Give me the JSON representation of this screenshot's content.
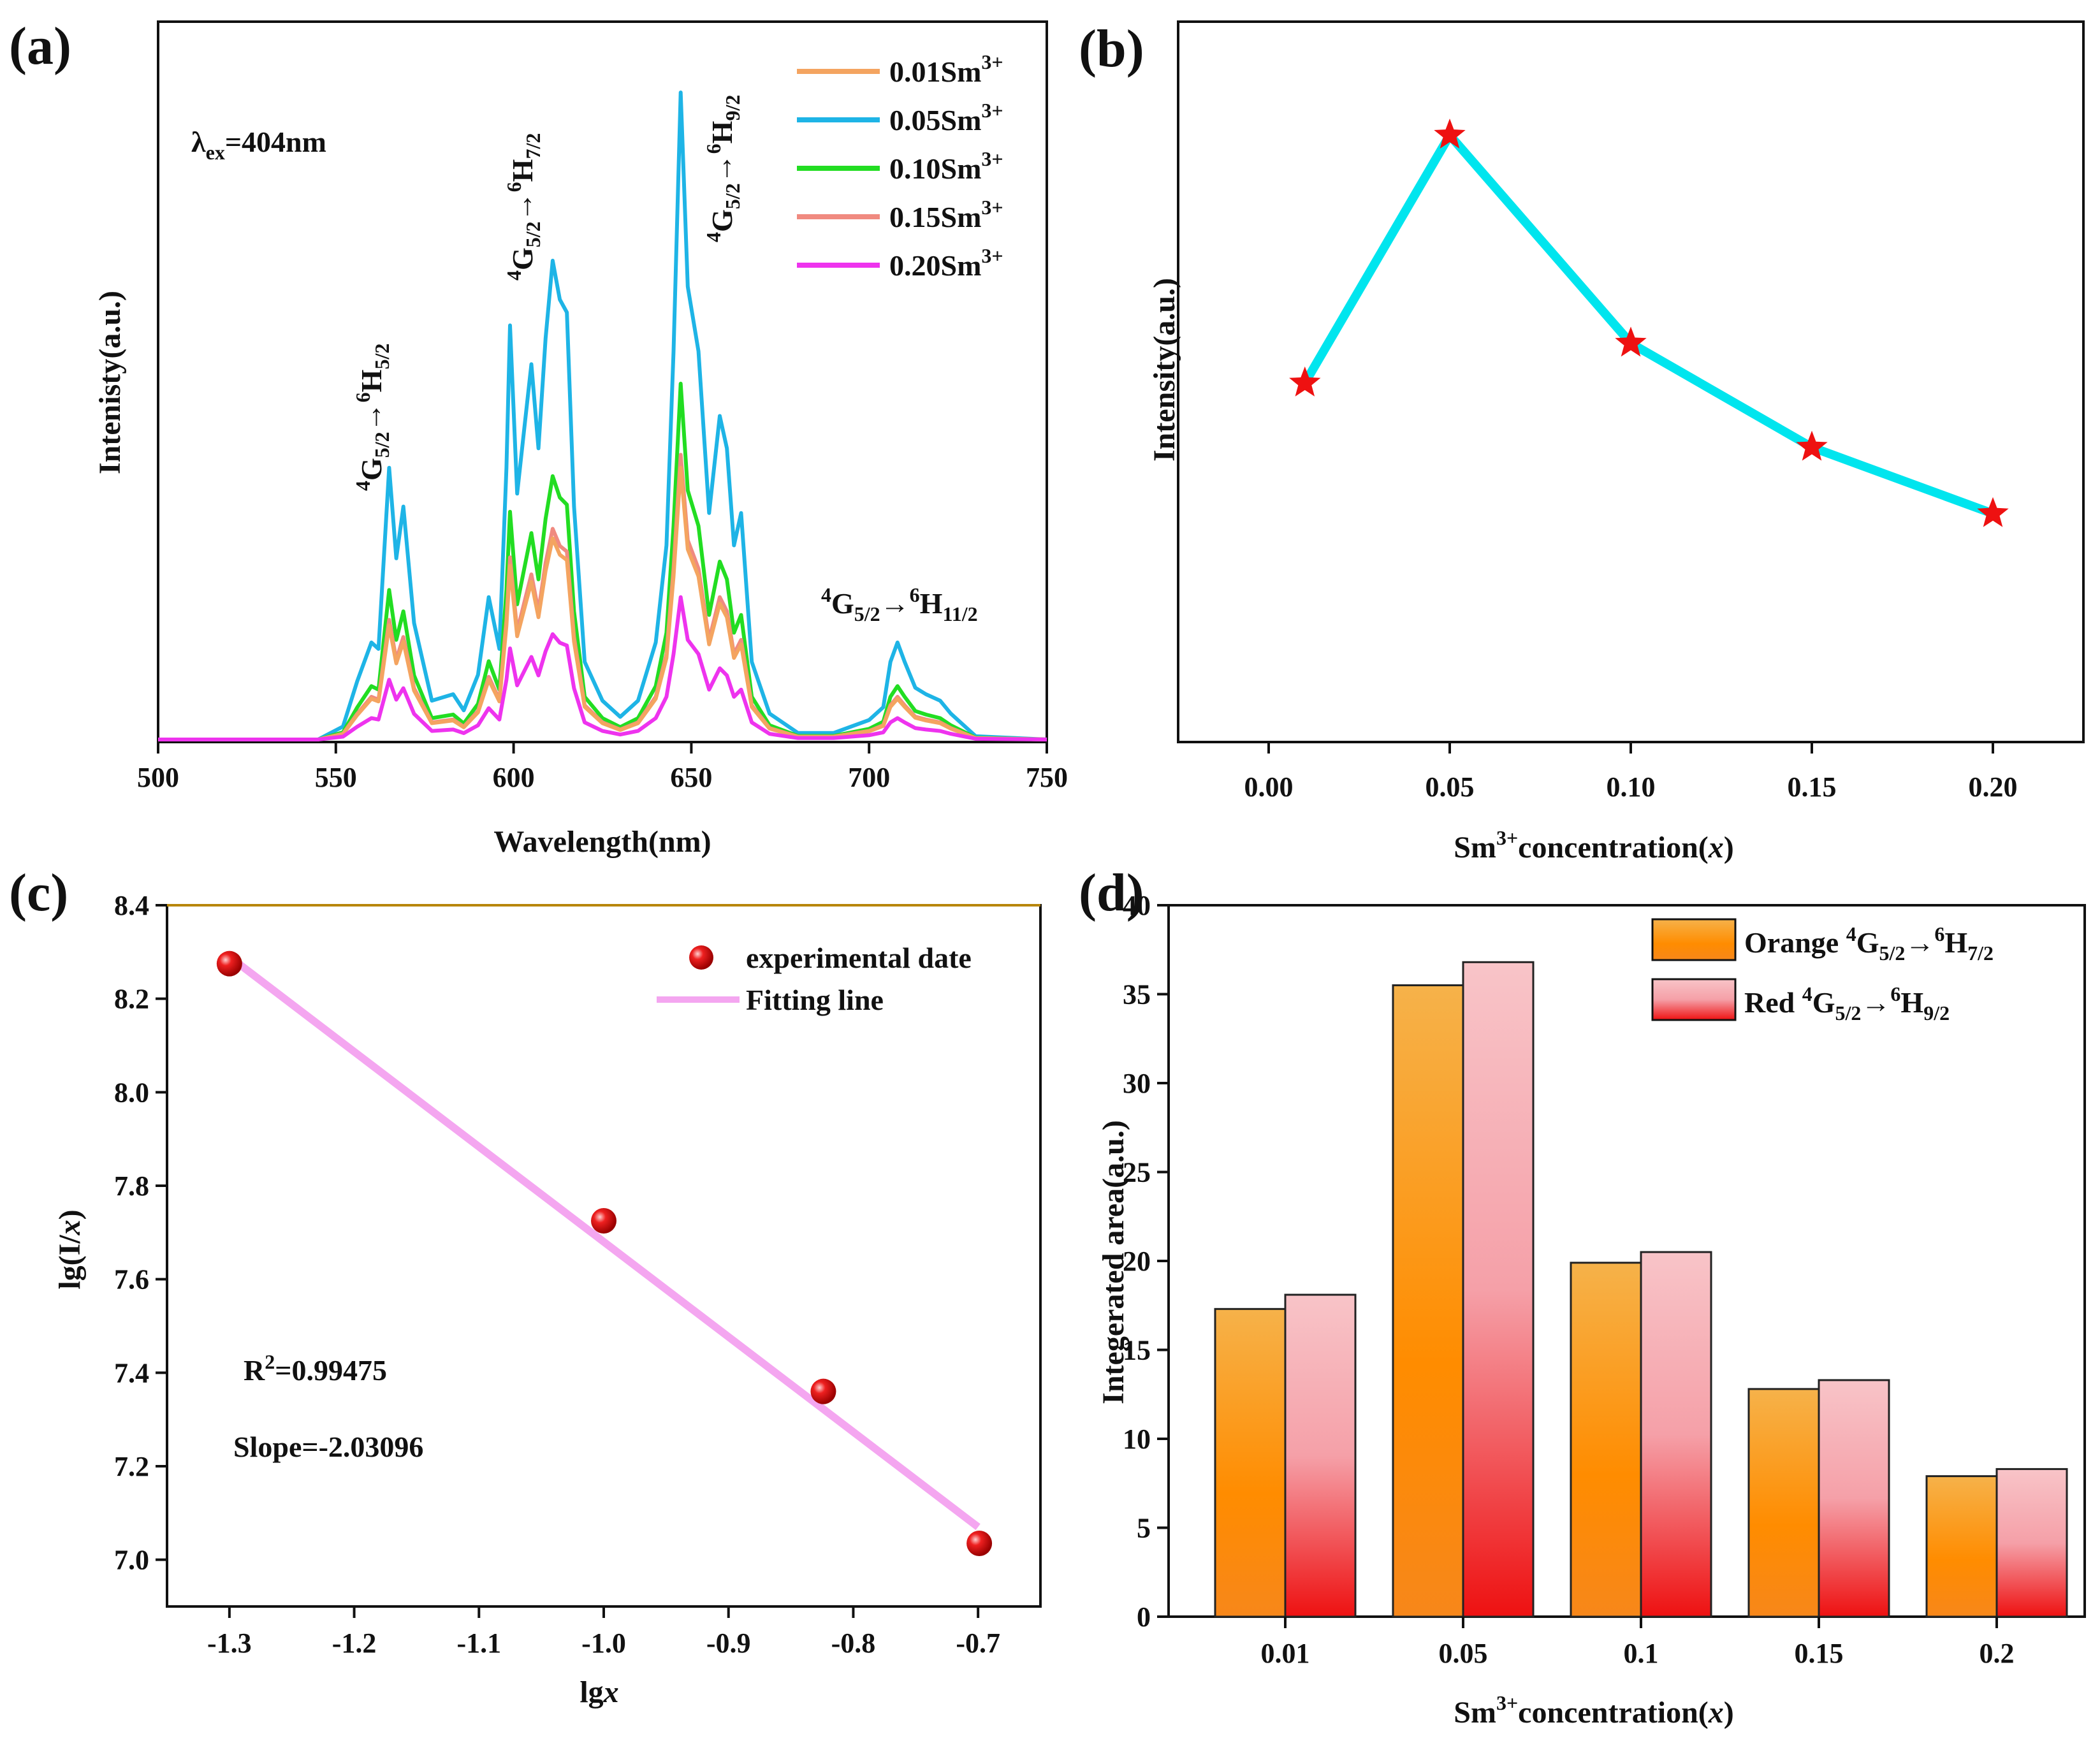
{
  "chart_data": [
    {
      "panel": "(a)",
      "type": "line",
      "xlabel": "Wavelength(nm)",
      "ylabel": "Intenisty(a.u.)",
      "xlim": [
        500,
        750
      ],
      "xticks": [
        500,
        550,
        600,
        650,
        700,
        750
      ],
      "excitation": {
        "symbol": "λ",
        "sub": "ex",
        "value": "=404nm"
      },
      "peak_labels": [
        {
          "text": "4G5/2→6H5/2",
          "wavelength": 565
        },
        {
          "text": "4G5/2→6H7/2",
          "wavelength": 611
        },
        {
          "text": "4G5/2→6H9/2",
          "wavelength": 647
        },
        {
          "text": "4G5/2→6H11/2",
          "wavelength": 708
        }
      ],
      "profile": [
        [
          500,
          0
        ],
        [
          545,
          0
        ],
        [
          552,
          0.02
        ],
        [
          556,
          0.09
        ],
        [
          560,
          0.15
        ],
        [
          562,
          0.14
        ],
        [
          565,
          0.42
        ],
        [
          567,
          0.28
        ],
        [
          569,
          0.36
        ],
        [
          572,
          0.18
        ],
        [
          577,
          0.06
        ],
        [
          583,
          0.07
        ],
        [
          586,
          0.045
        ],
        [
          590,
          0.1
        ],
        [
          593,
          0.22
        ],
        [
          596,
          0.14
        ],
        [
          598,
          0.42
        ],
        [
          599,
          0.64
        ],
        [
          601,
          0.38
        ],
        [
          603,
          0.48
        ],
        [
          605,
          0.58
        ],
        [
          607,
          0.45
        ],
        [
          609,
          0.62
        ],
        [
          611,
          0.74
        ],
        [
          613,
          0.68
        ],
        [
          615,
          0.66
        ],
        [
          617,
          0.36
        ],
        [
          620,
          0.12
        ],
        [
          625,
          0.06
        ],
        [
          630,
          0.035
        ],
        [
          635,
          0.06
        ],
        [
          640,
          0.15
        ],
        [
          643,
          0.3
        ],
        [
          645,
          0.6
        ],
        [
          647,
          1.0
        ],
        [
          649,
          0.7
        ],
        [
          652,
          0.6
        ],
        [
          655,
          0.35
        ],
        [
          658,
          0.5
        ],
        [
          660,
          0.45
        ],
        [
          662,
          0.3
        ],
        [
          664,
          0.35
        ],
        [
          667,
          0.12
        ],
        [
          672,
          0.04
        ],
        [
          680,
          0.01
        ],
        [
          690,
          0.01
        ],
        [
          700,
          0.03
        ],
        [
          704,
          0.05
        ],
        [
          706,
          0.12
        ],
        [
          708,
          0.15
        ],
        [
          710,
          0.12
        ],
        [
          713,
          0.08
        ],
        [
          716,
          0.07
        ],
        [
          720,
          0.06
        ],
        [
          723,
          0.04
        ],
        [
          730,
          0.005
        ],
        [
          750,
          0
        ]
      ],
      "series": [
        {
          "name": "0.01Sm",
          "sup": "3+",
          "color": "#f4a460",
          "scale": 0.42
        },
        {
          "name": "0.05Sm",
          "sup": "3+",
          "color": "#1eb4e6",
          "scale": 1.0
        },
        {
          "name": "0.10Sm",
          "sup": "3+",
          "color": "#22dd22",
          "scale": 0.55
        },
        {
          "name": "0.15Sm",
          "sup": "3+",
          "color": "#f08a80",
          "scale": 0.44
        },
        {
          "name": "0.20Sm",
          "sup": "3+",
          "color": "#ee33ee",
          "scale": 0.22
        }
      ]
    },
    {
      "panel": "(b)",
      "type": "line",
      "xlabel": "Sm3+concentration(x)",
      "ylabel": "Intensity(a.u.)",
      "xlim": [
        -0.025,
        0.225
      ],
      "ylim": [
        0,
        1.0
      ],
      "xticks": [
        "0.00",
        "0.05",
        "0.10",
        "0.15",
        "0.20"
      ],
      "x": [
        0.01,
        0.05,
        0.1,
        0.15,
        0.2
      ],
      "y": [
        0.44,
        1.0,
        0.53,
        0.295,
        0.145
      ],
      "line_color": "#00e5ee",
      "marker_color": "#ee1111"
    },
    {
      "panel": "(c)",
      "type": "scatter",
      "xlabel": "lgx",
      "ylabel": "lg(I/x)",
      "xlim": [
        -1.35,
        -0.65
      ],
      "ylim": [
        6.9,
        8.4
      ],
      "xticks": [
        "-1.3",
        "-1.2",
        "-1.1",
        "-1.0",
        "-0.9",
        "-0.8",
        "-0.7"
      ],
      "yticks": [
        "7.0",
        "7.2",
        "7.4",
        "7.6",
        "7.8",
        "8.0",
        "8.2",
        "8.4"
      ],
      "x": [
        -1.3,
        -1.0,
        -0.824,
        -0.699
      ],
      "y": [
        8.275,
        7.725,
        7.36,
        7.035
      ],
      "fit": {
        "x": [
          -1.3,
          -0.7
        ],
        "y": [
          8.29,
          7.07
        ],
        "color": "#f4a6f0"
      },
      "r2_text": "=0.99475",
      "slope_text": "Slope=-2.03096",
      "legend": [
        "experimental date",
        "Fitting line"
      ]
    },
    {
      "panel": "(d)",
      "type": "bar",
      "xlabel": "Sm3+concentration(x)",
      "ylabel": "Integerated area(a.u.)",
      "ylim": [
        0,
        40
      ],
      "yticks": [
        "0",
        "5",
        "10",
        "15",
        "20",
        "25",
        "30",
        "35",
        "40"
      ],
      "categories": [
        "0.01",
        "0.05",
        "0.1",
        "0.15",
        "0.2"
      ],
      "series": [
        {
          "name": "Orange",
          "transition": "4G5/2→6H7/2",
          "values": [
            17.3,
            35.5,
            19.9,
            12.8,
            7.9
          ]
        },
        {
          "name": "Red",
          "transition": "4G5/2→6H9/2",
          "values": [
            18.1,
            36.8,
            20.5,
            13.3,
            8.3
          ]
        }
      ]
    }
  ],
  "labels": {
    "a": "(a)",
    "b": "(b)",
    "c": "(c)",
    "d": "(d)"
  }
}
